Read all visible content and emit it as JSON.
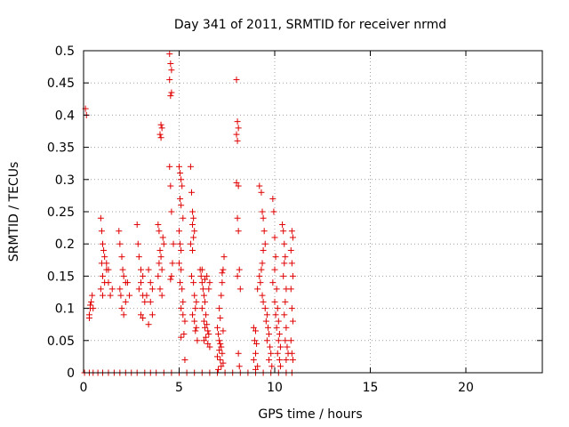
{
  "chart_data": {
    "type": "scatter",
    "title": "Day 341 of 2011, SRMTID for receiver nrmd",
    "xlabel": "GPS time / hours",
    "ylabel": "SRMTID / TECUs",
    "xlim": [
      0,
      24
    ],
    "ylim": [
      0,
      0.5
    ],
    "xticks": [
      0,
      5,
      10,
      15,
      20
    ],
    "xtick_labels": [
      "0",
      "5",
      "10",
      "15",
      "20"
    ],
    "yticks": [
      0,
      0.05,
      0.1,
      0.15,
      0.2,
      0.25,
      0.3,
      0.35,
      0.4,
      0.45,
      0.5
    ],
    "ytick_labels": [
      "0",
      "0.05",
      "0.1",
      "0.15",
      "0.2",
      "0.25",
      "0.3",
      "0.35",
      "0.4",
      "0.45",
      "0.5"
    ],
    "grid": true,
    "marker": "plus",
    "marker_color": "#e00000",
    "series": [
      {
        "points": [
          [
            0.1,
            0.41
          ],
          [
            0.15,
            0.4
          ],
          [
            0.05,
            0
          ],
          [
            0.3,
            0
          ],
          [
            0.5,
            0
          ],
          [
            0.75,
            0
          ],
          [
            1.0,
            0
          ],
          [
            1.3,
            0
          ],
          [
            1.6,
            0
          ],
          [
            1.9,
            0
          ],
          [
            2.2,
            0
          ],
          [
            2.5,
            0
          ],
          [
            2.8,
            0
          ],
          [
            3.2,
            0
          ],
          [
            3.5,
            0
          ],
          [
            3.8,
            0
          ],
          [
            4.2,
            0
          ],
          [
            4.6,
            0
          ],
          [
            5.0,
            0
          ],
          [
            5.4,
            0
          ],
          [
            5.8,
            0
          ],
          [
            6.2,
            0
          ],
          [
            6.6,
            0
          ],
          [
            7.0,
            0
          ],
          [
            7.4,
            0
          ],
          [
            7.8,
            0
          ],
          [
            8.2,
            0
          ],
          [
            8.6,
            0
          ],
          [
            9.0,
            0
          ],
          [
            9.4,
            0
          ],
          [
            9.8,
            0
          ],
          [
            10.2,
            0
          ],
          [
            10.6,
            0
          ],
          [
            10.9,
            0
          ],
          [
            0.3,
            0.09
          ],
          [
            0.35,
            0.1
          ],
          [
            0.4,
            0.11
          ],
          [
            0.45,
            0.12
          ],
          [
            0.3,
            0.085
          ],
          [
            0.5,
            0.1
          ],
          [
            0.35,
            0.105
          ],
          [
            0.9,
            0.24
          ],
          [
            0.95,
            0.22
          ],
          [
            1.0,
            0.2
          ],
          [
            1.05,
            0.19
          ],
          [
            1.1,
            0.18
          ],
          [
            1.0,
            0.15
          ],
          [
            0.9,
            0.13
          ],
          [
            1.2,
            0.17
          ],
          [
            1.3,
            0.14
          ],
          [
            1.4,
            0.12
          ],
          [
            1.5,
            0.13
          ],
          [
            1.2,
            0.16
          ],
          [
            1.1,
            0.14
          ],
          [
            1.3,
            0.16
          ],
          [
            1.0,
            0.12
          ],
          [
            0.95,
            0.17
          ],
          [
            1.85,
            0.22
          ],
          [
            1.9,
            0.2
          ],
          [
            2.0,
            0.18
          ],
          [
            2.05,
            0.16
          ],
          [
            2.1,
            0.15
          ],
          [
            2.2,
            0.14
          ],
          [
            1.95,
            0.12
          ],
          [
            2.0,
            0.1
          ],
          [
            2.1,
            0.09
          ],
          [
            1.9,
            0.13
          ],
          [
            2.3,
            0.14
          ],
          [
            2.4,
            0.12
          ],
          [
            2.2,
            0.11
          ],
          [
            2.8,
            0.23
          ],
          [
            2.85,
            0.2
          ],
          [
            2.9,
            0.18
          ],
          [
            3.0,
            0.16
          ],
          [
            3.1,
            0.15
          ],
          [
            3.0,
            0.14
          ],
          [
            2.9,
            0.13
          ],
          [
            3.1,
            0.12
          ],
          [
            3.2,
            0.11
          ],
          [
            3.0,
            0.09
          ],
          [
            3.1,
            0.085
          ],
          [
            3.4,
            0.16
          ],
          [
            3.5,
            0.14
          ],
          [
            3.6,
            0.13
          ],
          [
            3.3,
            0.12
          ],
          [
            3.5,
            0.11
          ],
          [
            3.4,
            0.075
          ],
          [
            3.6,
            0.09
          ],
          [
            3.9,
            0.23
          ],
          [
            3.95,
            0.22
          ],
          [
            4.0,
            0.19
          ],
          [
            4.05,
            0.18
          ],
          [
            4.1,
            0.16
          ],
          [
            3.9,
            0.15
          ],
          [
            4.0,
            0.13
          ],
          [
            4.1,
            0.12
          ],
          [
            4.0,
            0.37
          ],
          [
            4.05,
            0.365
          ],
          [
            4.1,
            0.38
          ],
          [
            4.05,
            0.385
          ],
          [
            4.15,
            0.21
          ],
          [
            4.2,
            0.2
          ],
          [
            3.95,
            0.17
          ],
          [
            4.5,
            0.495
          ],
          [
            4.55,
            0.48
          ],
          [
            4.6,
            0.47
          ],
          [
            4.5,
            0.455
          ],
          [
            4.55,
            0.43
          ],
          [
            4.6,
            0.435
          ],
          [
            4.5,
            0.32
          ],
          [
            4.55,
            0.29
          ],
          [
            4.6,
            0.25
          ],
          [
            4.7,
            0.2
          ],
          [
            4.65,
            0.17
          ],
          [
            4.6,
            0.15
          ],
          [
            4.55,
            0.145
          ],
          [
            5.0,
            0.32
          ],
          [
            5.05,
            0.31
          ],
          [
            5.1,
            0.3
          ],
          [
            5.15,
            0.29
          ],
          [
            5.05,
            0.27
          ],
          [
            5.1,
            0.26
          ],
          [
            5.2,
            0.24
          ],
          [
            5.0,
            0.22
          ],
          [
            5.05,
            0.2
          ],
          [
            5.1,
            0.19
          ],
          [
            5.0,
            0.17
          ],
          [
            5.1,
            0.16
          ],
          [
            5.05,
            0.14
          ],
          [
            5.15,
            0.13
          ],
          [
            5.2,
            0.11
          ],
          [
            5.1,
            0.1
          ],
          [
            5.2,
            0.09
          ],
          [
            5.3,
            0.08
          ],
          [
            5.25,
            0.06
          ],
          [
            5.1,
            0.055
          ],
          [
            5.3,
            0.02
          ],
          [
            5.6,
            0.32
          ],
          [
            5.65,
            0.28
          ],
          [
            5.7,
            0.25
          ],
          [
            5.75,
            0.24
          ],
          [
            5.7,
            0.23
          ],
          [
            5.8,
            0.22
          ],
          [
            5.75,
            0.21
          ],
          [
            5.6,
            0.2
          ],
          [
            5.7,
            0.19
          ],
          [
            5.65,
            0.15
          ],
          [
            5.75,
            0.14
          ],
          [
            5.8,
            0.12
          ],
          [
            5.9,
            0.11
          ],
          [
            5.85,
            0.1
          ],
          [
            5.7,
            0.09
          ],
          [
            5.8,
            0.08
          ],
          [
            5.9,
            0.07
          ],
          [
            5.85,
            0.065
          ],
          [
            5.95,
            0.05
          ],
          [
            6.1,
            0.16
          ],
          [
            6.15,
            0.15
          ],
          [
            6.2,
            0.14
          ],
          [
            6.25,
            0.13
          ],
          [
            6.3,
            0.12
          ],
          [
            6.35,
            0.11
          ],
          [
            6.2,
            0.1
          ],
          [
            6.4,
            0.09
          ],
          [
            6.3,
            0.08
          ],
          [
            6.45,
            0.075
          ],
          [
            6.35,
            0.07
          ],
          [
            6.5,
            0.065
          ],
          [
            6.55,
            0.06
          ],
          [
            6.4,
            0.055
          ],
          [
            6.3,
            0.05
          ],
          [
            6.5,
            0.045
          ],
          [
            6.6,
            0.04
          ],
          [
            6.55,
            0.13
          ],
          [
            6.6,
            0.14
          ],
          [
            6.45,
            0.15
          ],
          [
            6.2,
            0.16
          ],
          [
            6.35,
            0.145
          ],
          [
            7.0,
            0.07
          ],
          [
            7.05,
            0.06
          ],
          [
            7.1,
            0.05
          ],
          [
            7.15,
            0.045
          ],
          [
            7.2,
            0.04
          ],
          [
            7.1,
            0.035
          ],
          [
            7.25,
            0.03
          ],
          [
            7.0,
            0.025
          ],
          [
            7.15,
            0.02
          ],
          [
            7.3,
            0.015
          ],
          [
            7.2,
            0.01
          ],
          [
            7.05,
            0.005
          ],
          [
            7.1,
            0.1
          ],
          [
            7.2,
            0.12
          ],
          [
            7.25,
            0.14
          ],
          [
            7.3,
            0.16
          ],
          [
            7.35,
            0.18
          ],
          [
            7.25,
            0.155
          ],
          [
            7.15,
            0.085
          ],
          [
            7.3,
            0.065
          ],
          [
            8.0,
            0.455
          ],
          [
            8.05,
            0.39
          ],
          [
            8.1,
            0.38
          ],
          [
            8.0,
            0.37
          ],
          [
            8.05,
            0.36
          ],
          [
            8.1,
            0.29
          ],
          [
            8.0,
            0.295
          ],
          [
            8.05,
            0.24
          ],
          [
            8.1,
            0.22
          ],
          [
            8.15,
            0.16
          ],
          [
            8.05,
            0.15
          ],
          [
            8.2,
            0.13
          ],
          [
            8.1,
            0.03
          ],
          [
            8.15,
            0.01
          ],
          [
            8.9,
            0.07
          ],
          [
            9.0,
            0.065
          ],
          [
            8.95,
            0.05
          ],
          [
            9.05,
            0.045
          ],
          [
            9.0,
            0.03
          ],
          [
            8.9,
            0.02
          ],
          [
            9.1,
            0.01
          ],
          [
            9.0,
            0.005
          ],
          [
            9.2,
            0.29
          ],
          [
            9.3,
            0.28
          ],
          [
            9.35,
            0.25
          ],
          [
            9.4,
            0.24
          ],
          [
            9.45,
            0.22
          ],
          [
            9.5,
            0.2
          ],
          [
            9.4,
            0.19
          ],
          [
            9.35,
            0.17
          ],
          [
            9.3,
            0.16
          ],
          [
            9.2,
            0.15
          ],
          [
            9.25,
            0.14
          ],
          [
            9.1,
            0.13
          ],
          [
            9.35,
            0.12
          ],
          [
            9.4,
            0.11
          ],
          [
            9.5,
            0.1
          ],
          [
            9.6,
            0.09
          ],
          [
            9.55,
            0.08
          ],
          [
            9.65,
            0.07
          ],
          [
            9.7,
            0.06
          ],
          [
            9.6,
            0.05
          ],
          [
            9.75,
            0.04
          ],
          [
            9.8,
            0.03
          ],
          [
            9.7,
            0.02
          ],
          [
            9.85,
            0.01
          ],
          [
            9.9,
            0.27
          ],
          [
            9.95,
            0.25
          ],
          [
            10.0,
            0.21
          ],
          [
            10.05,
            0.18
          ],
          [
            10.0,
            0.16
          ],
          [
            9.9,
            0.14
          ],
          [
            10.1,
            0.13
          ],
          [
            10.0,
            0.11
          ],
          [
            10.15,
            0.1
          ],
          [
            10.05,
            0.09
          ],
          [
            10.2,
            0.08
          ],
          [
            10.1,
            0.07
          ],
          [
            10.25,
            0.06
          ],
          [
            10.2,
            0.05
          ],
          [
            10.3,
            0.04
          ],
          [
            10.15,
            0.03
          ],
          [
            10.25,
            0.02
          ],
          [
            10.3,
            0.01
          ],
          [
            10.4,
            0.23
          ],
          [
            10.45,
            0.22
          ],
          [
            10.5,
            0.2
          ],
          [
            10.55,
            0.18
          ],
          [
            10.5,
            0.17
          ],
          [
            10.45,
            0.15
          ],
          [
            10.6,
            0.13
          ],
          [
            10.55,
            0.11
          ],
          [
            10.5,
            0.09
          ],
          [
            10.6,
            0.07
          ],
          [
            10.55,
            0.05
          ],
          [
            10.65,
            0.04
          ],
          [
            10.7,
            0.03
          ],
          [
            10.6,
            0.02
          ],
          [
            10.9,
            0.22
          ],
          [
            10.95,
            0.21
          ],
          [
            10.85,
            0.19
          ],
          [
            10.9,
            0.17
          ],
          [
            10.95,
            0.15
          ],
          [
            10.85,
            0.13
          ],
          [
            10.9,
            0.1
          ],
          [
            10.95,
            0.08
          ],
          [
            10.85,
            0.05
          ],
          [
            10.9,
            0.03
          ],
          [
            10.95,
            0.02
          ]
        ]
      }
    ]
  }
}
